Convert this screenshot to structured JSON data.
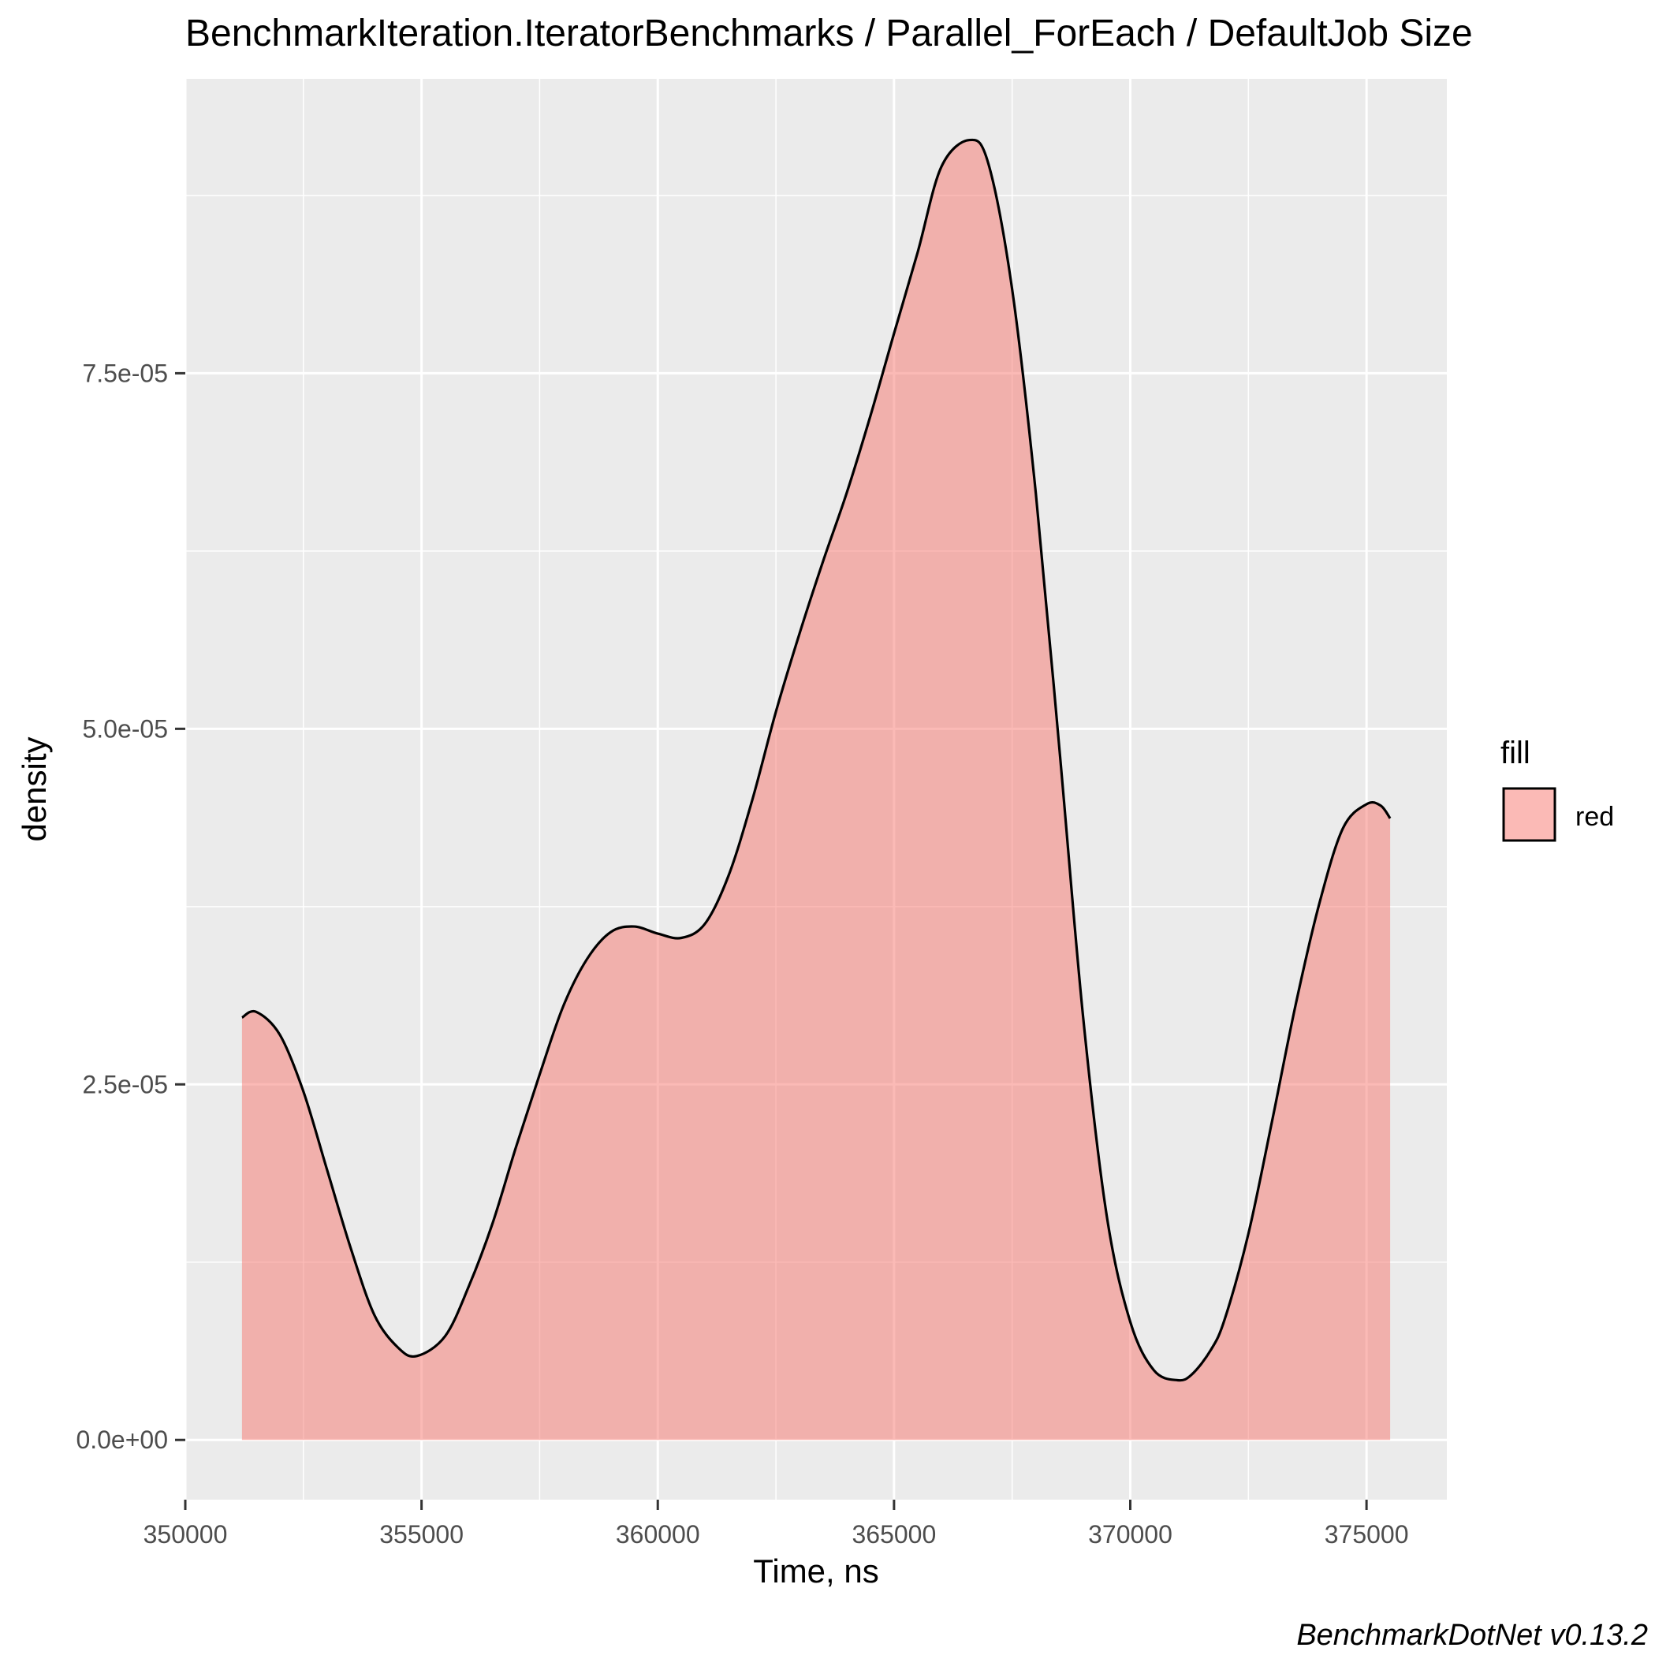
{
  "chart_data": {
    "type": "area",
    "title": "BenchmarkIteration.IteratorBenchmarks / Parallel_ForEach / DefaultJob Size",
    "xlabel": "Time, ns",
    "ylabel": "density",
    "caption": "BenchmarkDotNet v0.13.2",
    "xlim": [
      350000,
      376700
    ],
    "ylim": [
      -4.2e-06,
      9.57e-05
    ],
    "x_ticks": [
      350000,
      355000,
      360000,
      365000,
      370000,
      375000
    ],
    "x_tick_labels": [
      "350000",
      "355000",
      "360000",
      "365000",
      "370000",
      "375000"
    ],
    "y_ticks": [
      0,
      2.5e-05,
      5e-05,
      7.5e-05
    ],
    "y_tick_labels": [
      "0.0e+00",
      "2.5e-05",
      "5.0e-05",
      "7.5e-05"
    ],
    "grid": true,
    "legend": {
      "title": "fill",
      "position": "right",
      "entries": [
        {
          "label": "red",
          "color": "#F8766D"
        }
      ]
    },
    "series": [
      {
        "name": "red",
        "fill_color": "#F8766D",
        "line_color": "#000000",
        "x": [
          351200,
          351500,
          352000,
          352500,
          353000,
          353500,
          354000,
          354500,
          354900,
          355500,
          356000,
          356500,
          357000,
          357500,
          358000,
          358500,
          359000,
          359500,
          360000,
          360500,
          361000,
          361500,
          362000,
          362500,
          363000,
          363500,
          364000,
          364500,
          365000,
          365500,
          366000,
          366600,
          367000,
          367500,
          368000,
          368500,
          369000,
          369500,
          370000,
          370500,
          371000,
          371300,
          371700,
          372000,
          372500,
          373000,
          373500,
          374000,
          374500,
          375000,
          375300,
          375500
        ],
        "y": [
          2.97e-05,
          3.01e-05,
          2.85e-05,
          2.45e-05,
          1.9e-05,
          1.35e-05,
          8.8e-06,
          6.5e-06,
          5.9e-06,
          7.3e-06,
          1.08e-05,
          1.52e-05,
          2.06e-05,
          2.57e-05,
          3.05e-05,
          3.38e-05,
          3.57e-05,
          3.61e-05,
          3.56e-05,
          3.53e-05,
          3.63e-05,
          3.97e-05,
          4.5e-05,
          5.12e-05,
          5.67e-05,
          6.18e-05,
          6.66e-05,
          7.2e-05,
          7.78e-05,
          8.35e-05,
          8.95e-05,
          9.14e-05,
          8.97e-05,
          8.09e-05,
          6.66e-05,
          4.86e-05,
          2.98e-05,
          1.58e-05,
          8.3e-06,
          4.9e-06,
          4.2e-06,
          4.6e-06,
          6.3e-06,
          8.5e-06,
          1.45e-05,
          2.24e-05,
          3.06e-05,
          3.77e-05,
          4.3e-05,
          4.47e-05,
          4.46e-05,
          4.37e-05
        ]
      }
    ]
  }
}
